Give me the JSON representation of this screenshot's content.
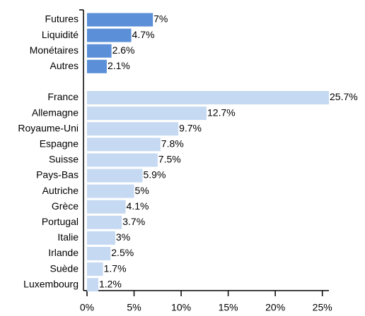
{
  "chart_data": {
    "type": "bar",
    "orientation": "horizontal",
    "categories": [
      "Futures",
      "Liquidité",
      "Monétaires",
      "Autres",
      null,
      "France",
      "Allemagne",
      "Royaume-Uni",
      "Espagne",
      "Suisse",
      "Pays-Bas",
      "Autriche",
      "Grèce",
      "Portugal",
      "Italie",
      "Irlande",
      "Suède",
      "Luxembourg"
    ],
    "values": [
      7,
      4.7,
      2.6,
      2.1,
      null,
      25.7,
      12.7,
      9.7,
      7.8,
      7.5,
      5.9,
      5,
      4.1,
      3.7,
      3,
      2.5,
      1.7,
      1.2
    ],
    "value_labels": [
      "7%",
      "4.7%",
      "2.6%",
      "2.1%",
      null,
      "25.7%",
      "12.7%",
      "9.7%",
      "7.8%",
      "7.5%",
      "5.9%",
      "5%",
      "4.1%",
      "3.7%",
      "3%",
      "2.5%",
      "1.7%",
      "1.2%"
    ],
    "colors": [
      "#5b8fd8",
      "#5b8fd8",
      "#5b8fd8",
      "#5b8fd8",
      null,
      "#c6d9f2",
      "#c6d9f2",
      "#c6d9f2",
      "#c6d9f2",
      "#c6d9f2",
      "#c6d9f2",
      "#c6d9f2",
      "#c6d9f2",
      "#c6d9f2",
      "#c6d9f2",
      "#c6d9f2",
      "#c6d9f2",
      "#c6d9f2"
    ],
    "xlim": [
      0,
      25.7
    ],
    "xticks": [
      {
        "value": 0,
        "label": "0%"
      },
      {
        "value": 5,
        "label": "5%"
      },
      {
        "value": 10,
        "label": "10%"
      },
      {
        "value": 15,
        "label": "15%"
      },
      {
        "value": 20,
        "label": "20%"
      },
      {
        "value": 25,
        "label": "25%"
      }
    ]
  }
}
